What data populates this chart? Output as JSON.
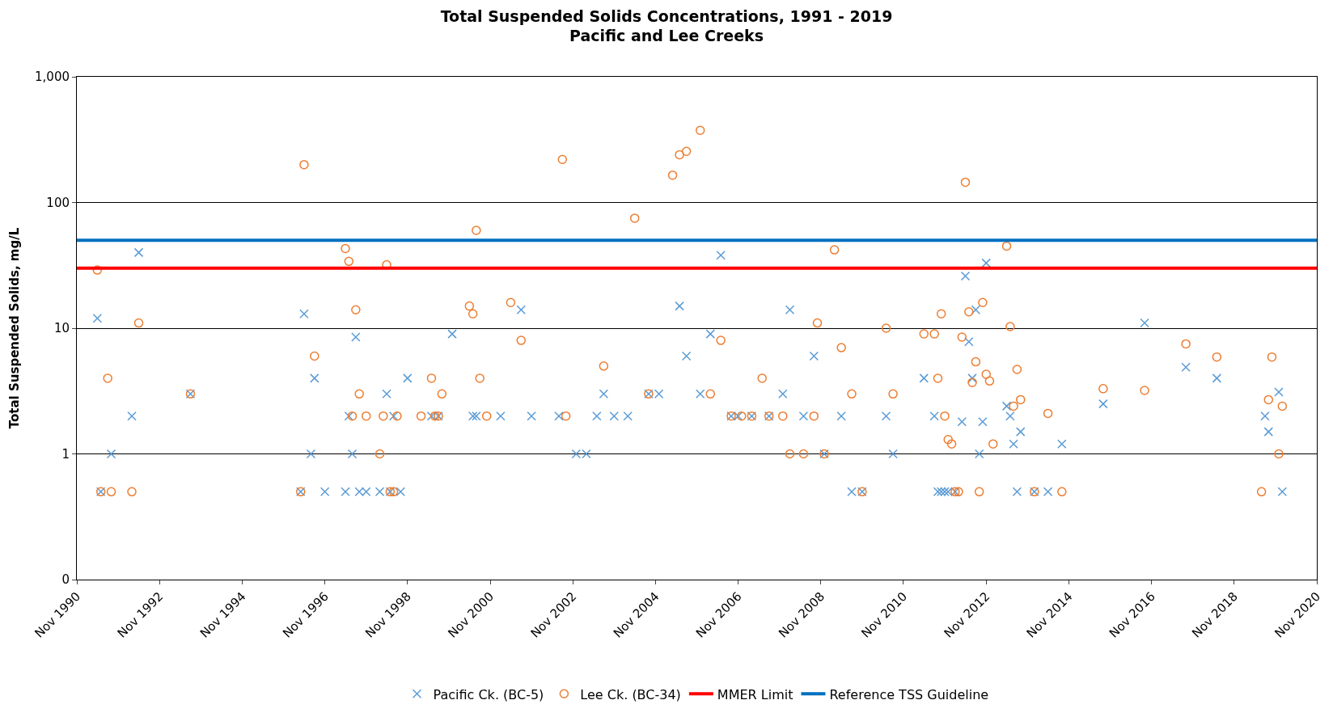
{
  "chart_data": {
    "type": "scatter",
    "title": "Total Suspended Solids Concentrations, 1991 - 2019",
    "subtitle": "Pacific and Lee Creeks",
    "ylabel": "Total Suspended Solids, mg/L",
    "log": "y",
    "grid": "y",
    "legend": "bottom",
    "xlim": [
      "1990-11",
      "2020-11"
    ],
    "ylim": [
      0.1,
      1000
    ],
    "xticks": [
      {
        "value": "1990-11",
        "label": "Nov 1990"
      },
      {
        "value": "1992-11",
        "label": "Nov 1992"
      },
      {
        "value": "1994-11",
        "label": "Nov 1994"
      },
      {
        "value": "1996-11",
        "label": "Nov 1996"
      },
      {
        "value": "1998-11",
        "label": "Nov 1998"
      },
      {
        "value": "2000-11",
        "label": "Nov 2000"
      },
      {
        "value": "2002-11",
        "label": "Nov 2002"
      },
      {
        "value": "2004-11",
        "label": "Nov 2004"
      },
      {
        "value": "2006-11",
        "label": "Nov 2006"
      },
      {
        "value": "2008-11",
        "label": "Nov 2008"
      },
      {
        "value": "2010-11",
        "label": "Nov 2010"
      },
      {
        "value": "2012-11",
        "label": "Nov 2012"
      },
      {
        "value": "2014-11",
        "label": "Nov 2014"
      },
      {
        "value": "2016-11",
        "label": "Nov 2016"
      },
      {
        "value": "2018-11",
        "label": "Nov 2018"
      },
      {
        "value": "2020-11",
        "label": "Nov 2020"
      }
    ],
    "yticks": [
      {
        "value": 0.1,
        "label": "0"
      },
      1,
      10,
      100,
      {
        "value": 1000,
        "label": "1,000"
      }
    ],
    "series": [
      {
        "name": "Pacific Ck. (BC-5)",
        "color": "#5b9bd5",
        "marker": "cross",
        "x": [
          "1991-05",
          "1991-06",
          "1991-09",
          "1992-03",
          "1992-05",
          "1993-08",
          "1996-04",
          "1996-05",
          "1996-07",
          "1996-08",
          "1996-11",
          "1997-05",
          "1997-06",
          "1997-07",
          "1997-08",
          "1997-09",
          "1997-11",
          "1998-03",
          "1998-05",
          "1998-06",
          "1998-07",
          "1998-09",
          "1998-11",
          "1999-06",
          "1999-08",
          "1999-12",
          "2000-06",
          "2000-07",
          "2001-02",
          "2001-08",
          "2001-11",
          "2002-07",
          "2002-12",
          "2003-03",
          "2003-06",
          "2003-08",
          "2003-11",
          "2004-03",
          "2004-09",
          "2004-12",
          "2005-06",
          "2005-08",
          "2005-12",
          "2006-03",
          "2006-06",
          "2006-09",
          "2006-11",
          "2007-03",
          "2007-08",
          "2007-12",
          "2008-02",
          "2008-06",
          "2008-09",
          "2008-12",
          "2009-05",
          "2009-08",
          "2009-11",
          "2010-06",
          "2010-08",
          "2011-05",
          "2011-08",
          "2011-09",
          "2011-10",
          "2011-11",
          "2011-12",
          "2012-02",
          "2012-04",
          "2012-05",
          "2012-06",
          "2012-07",
          "2012-08",
          "2012-09",
          "2012-10",
          "2012-11",
          "2013-05",
          "2013-06",
          "2013-07",
          "2013-08",
          "2013-09",
          "2014-01",
          "2014-05",
          "2014-09",
          "2015-09",
          "2016-09",
          "2017-09",
          "2018-06",
          "2019-08",
          "2019-09",
          "2019-12",
          "2020-01"
        ],
        "values": [
          12,
          0.5,
          1,
          2,
          40,
          3,
          0.5,
          13,
          1,
          4,
          0.5,
          0.5,
          2,
          1,
          8.5,
          0.5,
          0.5,
          0.5,
          3,
          0.5,
          2,
          0.5,
          4,
          2,
          2,
          9,
          2,
          2,
          2,
          14,
          2,
          2,
          1,
          1,
          2,
          3,
          2,
          2,
          3,
          3,
          15,
          6,
          3,
          9,
          38,
          2,
          2,
          2,
          2,
          3,
          14,
          2,
          6,
          1,
          2,
          0.5,
          0.5,
          2,
          1,
          4,
          2,
          0.5,
          0.5,
          0.5,
          0.5,
          0.5,
          1.8,
          26,
          7.8,
          4,
          14,
          1,
          1.8,
          33,
          2.4,
          2,
          1.2,
          0.5,
          1.5,
          0.5,
          0.5,
          1.2,
          2.5,
          11,
          4.9,
          4,
          2,
          1.5,
          3.1,
          0.5
        ]
      },
      {
        "name": "Lee Ck. (BC-34)",
        "color": "#ed7d31",
        "marker": "circle",
        "x": [
          "1991-05",
          "1991-06",
          "1991-08",
          "1991-09",
          "1992-03",
          "1992-05",
          "1993-08",
          "1996-04",
          "1996-05",
          "1996-08",
          "1997-05",
          "1997-06",
          "1997-07",
          "1997-08",
          "1997-09",
          "1997-11",
          "1998-03",
          "1998-04",
          "1998-05",
          "1998-06",
          "1998-07",
          "1998-08",
          "1999-03",
          "1999-06",
          "1999-07",
          "1999-08",
          "1999-09",
          "2000-05",
          "2000-06",
          "2000-07",
          "2000-08",
          "2000-10",
          "2001-05",
          "2001-08",
          "2002-08",
          "2002-09",
          "2003-08",
          "2004-05",
          "2004-09",
          "2005-04",
          "2005-06",
          "2005-08",
          "2005-12",
          "2006-03",
          "2006-06",
          "2006-09",
          "2006-12",
          "2007-03",
          "2007-06",
          "2007-08",
          "2007-12",
          "2008-02",
          "2008-06",
          "2008-09",
          "2008-10",
          "2008-12",
          "2009-03",
          "2009-05",
          "2009-08",
          "2009-11",
          "2010-06",
          "2010-08",
          "2011-05",
          "2011-08",
          "2011-09",
          "2011-10",
          "2011-11",
          "2011-12",
          "2012-01",
          "2012-02",
          "2012-03",
          "2012-04",
          "2012-05",
          "2012-06",
          "2012-07",
          "2012-08",
          "2012-09",
          "2012-10",
          "2012-11",
          "2012-12",
          "2013-01",
          "2013-05",
          "2013-06",
          "2013-07",
          "2013-08",
          "2013-09",
          "2014-01",
          "2014-05",
          "2014-09",
          "2015-09",
          "2016-09",
          "2017-09",
          "2018-06",
          "2019-07",
          "2019-09",
          "2019-10",
          "2019-12",
          "2020-01"
        ],
        "values": [
          29,
          0.5,
          4,
          0.5,
          0.5,
          11,
          3,
          0.5,
          200,
          6,
          43,
          34,
          2,
          14,
          3,
          2,
          1,
          2,
          32,
          0.5,
          0.5,
          2,
          2,
          4,
          2,
          2,
          3,
          15,
          13,
          60,
          4,
          2,
          16,
          8,
          220,
          2,
          5,
          75,
          3,
          165,
          240,
          255,
          375,
          3,
          8,
          2,
          2,
          2,
          4,
          2,
          2,
          1,
          1,
          2,
          11,
          1,
          42,
          7,
          3,
          0.5,
          10,
          3,
          9,
          9,
          4,
          13,
          2,
          1.3,
          1.2,
          0.5,
          0.5,
          8.5,
          145,
          13.5,
          3.7,
          5.4,
          0.5,
          16,
          4.3,
          3.8,
          1.2,
          45,
          10.3,
          2.4,
          4.7,
          2.7,
          0.5,
          2.1,
          0.5,
          3.3,
          3.2,
          7.5,
          5.9,
          0.5,
          2.7,
          5.9,
          1,
          2.4
        ]
      }
    ],
    "ref_lines": [
      {
        "axis": "y",
        "value": 30,
        "label": "MMER Limit",
        "color": "#ff0000"
      },
      {
        "axis": "y",
        "value": 50,
        "label": "Reference TSS Guideline",
        "color": "#0070c0"
      }
    ]
  }
}
